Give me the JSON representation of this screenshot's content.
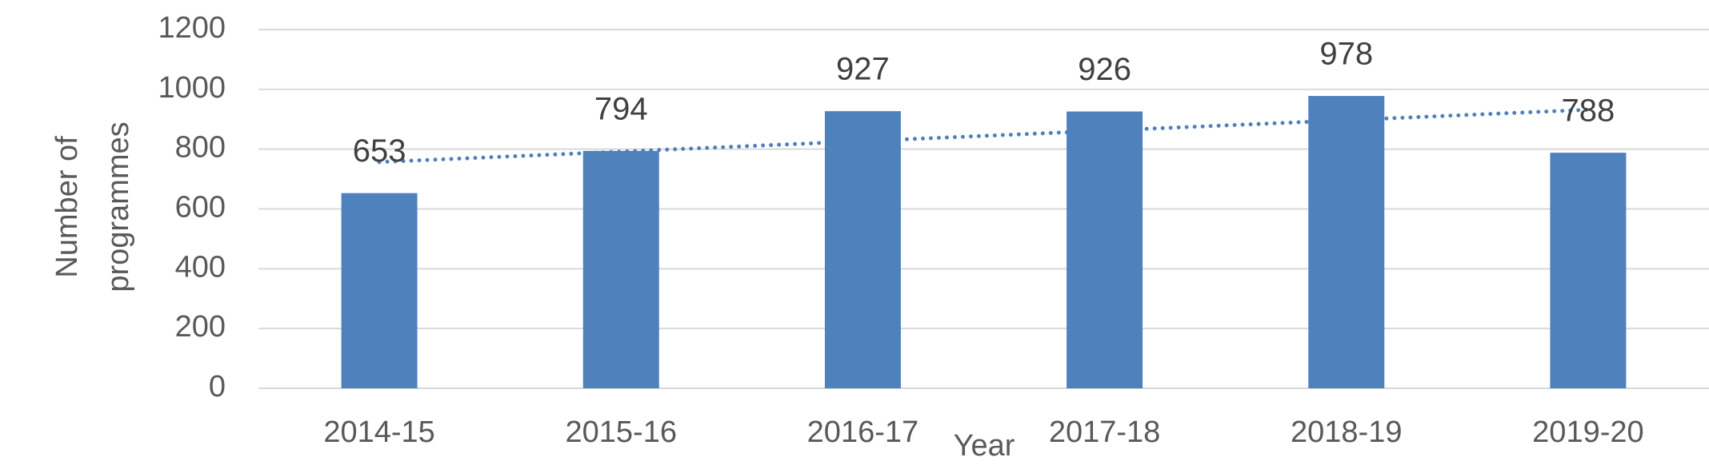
{
  "chart_data": {
    "type": "bar",
    "categories": [
      "2014-15",
      "2015-16",
      "2016-17",
      "2017-18",
      "2018-19",
      "2019-20"
    ],
    "values": [
      653,
      794,
      927,
      926,
      978,
      788
    ],
    "color": "#4f81bd",
    "x_label": "Year",
    "y_label": [
      "Number of",
      "programmes"
    ],
    "ylim": [
      0,
      1200
    ],
    "yticks": [
      0,
      200,
      400,
      600,
      800,
      1000,
      1200
    ],
    "grid": true,
    "data_labels": true,
    "trendline": "linear"
  }
}
